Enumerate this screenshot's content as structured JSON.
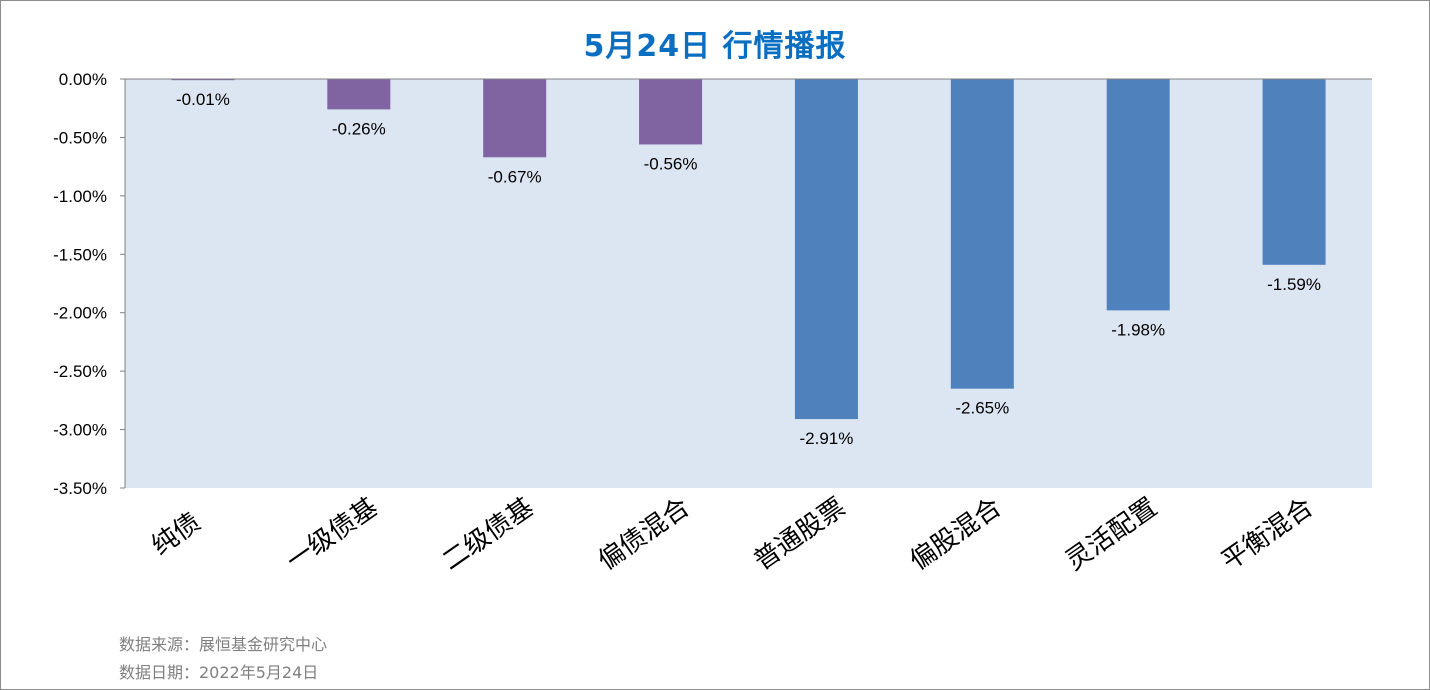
{
  "chart_data": {
    "type": "bar",
    "title": "5月24日  行情播报",
    "categories": [
      "纯债",
      "一级债基",
      "二级债基",
      "偏债混合",
      "普通股票",
      "偏股混合",
      "灵活配置",
      "平衡混合"
    ],
    "values": [
      -0.01,
      -0.26,
      -0.67,
      -0.56,
      -2.91,
      -2.65,
      -1.98,
      -1.59
    ],
    "value_labels": [
      "-0.01%",
      "-0.26%",
      "-0.67%",
      "-0.56%",
      "-2.91%",
      "-2.65%",
      "-1.98%",
      "-1.59%"
    ],
    "bar_colors": [
      "#8064a2",
      "#8064a2",
      "#8064a2",
      "#8064a2",
      "#4f81bd",
      "#4f81bd",
      "#4f81bd",
      "#4f81bd"
    ],
    "y_ticks": [
      0,
      -0.5,
      -1.0,
      -1.5,
      -2.0,
      -2.5,
      -3.0,
      -3.5
    ],
    "y_tick_labels": [
      "0.00%",
      "-0.50%",
      "-1.00%",
      "-1.50%",
      "-2.00%",
      "-2.50%",
      "-3.00%",
      "-3.50%"
    ],
    "ylim": [
      -3.5,
      0
    ],
    "xlabel": "",
    "ylabel": "",
    "grid": false,
    "legend": "none",
    "plot_background": "#dce6f2",
    "title_color": "#0b6fc1"
  },
  "footer": {
    "source": "数据来源：展恒基金研究中心",
    "date": "数据日期：2022年5月24日"
  }
}
